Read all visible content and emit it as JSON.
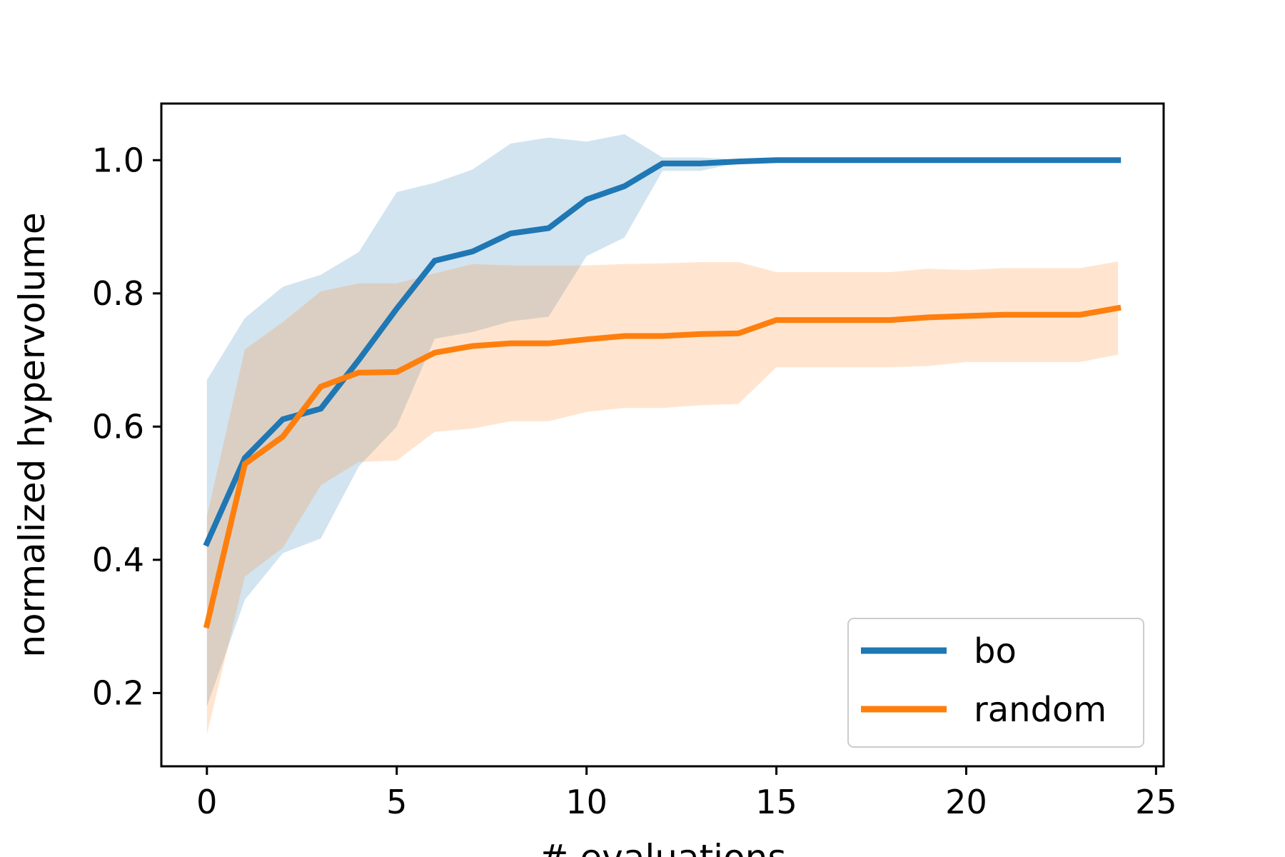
{
  "chart_data": {
    "type": "line",
    "xlabel": "# evaluations",
    "ylabel": "normalized hypervolume",
    "xlim": [
      -1.2,
      25.2
    ],
    "ylim": [
      0.09,
      1.085
    ],
    "xticks": [
      0,
      5,
      10,
      15,
      20,
      25
    ],
    "xtick_labels": [
      "0",
      "5",
      "10",
      "15",
      "20",
      "25"
    ],
    "yticks": [
      0.2,
      0.4,
      0.6,
      0.8,
      1.0
    ],
    "ytick_labels": [
      "0.2",
      "0.4",
      "0.6",
      "0.8",
      "1.0"
    ],
    "grid": false,
    "legend_position": "lower right",
    "x": [
      0,
      1,
      2,
      3,
      4,
      5,
      6,
      7,
      8,
      9,
      10,
      11,
      12,
      13,
      14,
      15,
      16,
      17,
      18,
      19,
      20,
      21,
      22,
      23,
      24
    ],
    "series": [
      {
        "name": "bo",
        "color": "#1f77b4",
        "band_color": "#1f77b4",
        "values": [
          0.425,
          0.553,
          0.611,
          0.627,
          0.7,
          0.777,
          0.849,
          0.863,
          0.89,
          0.898,
          0.941,
          0.961,
          0.995,
          0.995,
          0.998,
          1.0,
          1.0,
          1.0,
          1.0,
          1.0,
          1.0,
          1.0,
          1.0,
          1.0,
          1.0
        ],
        "upper": [
          0.67,
          0.763,
          0.81,
          0.828,
          0.862,
          0.952,
          0.966,
          0.986,
          1.025,
          1.034,
          1.028,
          1.039,
          1.004,
          1.004,
          1.001,
          1.0,
          1.0,
          1.0,
          1.0,
          1.0,
          1.0,
          1.0,
          1.0,
          1.0,
          1.0
        ],
        "lower": [
          0.18,
          0.34,
          0.41,
          0.432,
          0.54,
          0.6,
          0.732,
          0.742,
          0.758,
          0.765,
          0.856,
          0.884,
          0.984,
          0.984,
          0.996,
          1.0,
          1.0,
          1.0,
          1.0,
          1.0,
          1.0,
          1.0,
          1.0,
          1.0,
          1.0
        ]
      },
      {
        "name": "random",
        "color": "#ff7f0e",
        "band_color": "#ff7f0e",
        "values": [
          0.302,
          0.544,
          0.585,
          0.66,
          0.681,
          0.682,
          0.711,
          0.721,
          0.725,
          0.725,
          0.731,
          0.736,
          0.736,
          0.739,
          0.74,
          0.76,
          0.76,
          0.76,
          0.76,
          0.764,
          0.766,
          0.768,
          0.768,
          0.768,
          0.778
        ],
        "upper": [
          0.465,
          0.716,
          0.757,
          0.803,
          0.815,
          0.815,
          0.83,
          0.844,
          0.842,
          0.842,
          0.842,
          0.844,
          0.845,
          0.847,
          0.847,
          0.832,
          0.832,
          0.832,
          0.832,
          0.837,
          0.835,
          0.838,
          0.838,
          0.838,
          0.848
        ],
        "lower": [
          0.138,
          0.375,
          0.418,
          0.512,
          0.547,
          0.549,
          0.592,
          0.597,
          0.608,
          0.608,
          0.622,
          0.628,
          0.628,
          0.632,
          0.634,
          0.689,
          0.689,
          0.689,
          0.689,
          0.691,
          0.697,
          0.697,
          0.697,
          0.697,
          0.708
        ]
      }
    ]
  }
}
